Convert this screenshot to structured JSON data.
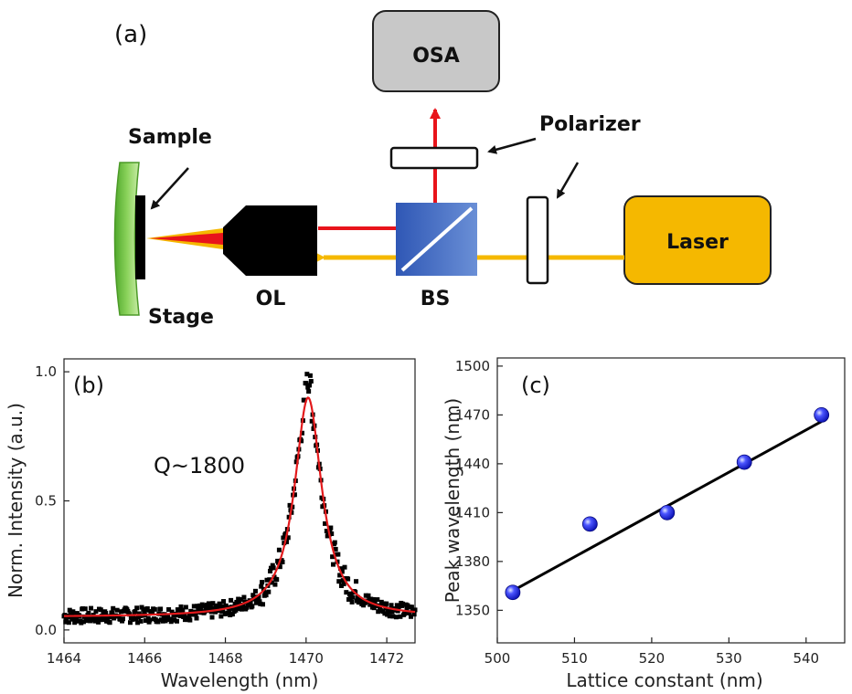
{
  "panel_a": {
    "label": "(a)",
    "boxes": {
      "osa": "OSA",
      "laser": "Laser"
    },
    "labels": {
      "sample": "Sample",
      "stage": "Stage",
      "objective": "OL",
      "beamsplitter": "BS",
      "polarizer": "Polarizer"
    },
    "colors": {
      "laser_beam": "#f5b800",
      "signal_beam": "#e8141b",
      "stage": "#6fbf3f",
      "bs": "#3a63b7",
      "laser_box": "#f5b800",
      "osa_box": "#c8c8c8"
    }
  },
  "chart_data": [
    {
      "panel": "(b)",
      "type": "scatter",
      "annotation": "Q~1800",
      "xlabel": "Wavelength (nm)",
      "ylabel": "Norm. Intensity (a.u.)",
      "xlim": [
        1464,
        1472.7
      ],
      "ylim": [
        -0.05,
        1.05
      ],
      "xticks": [
        1464,
        1466,
        1468,
        1470,
        1472
      ],
      "yticks": [
        0.0,
        0.5,
        1.0
      ],
      "ytick_labels": [
        "0.0",
        "0.5",
        "1.0"
      ],
      "series": [
        {
          "kind": "measured",
          "marker": "square",
          "color": "#000000",
          "peak_x": 1470.05,
          "peak_y": 0.92,
          "baseline": 0.05,
          "noise": 0.03,
          "n_points": 430
        },
        {
          "kind": "fit",
          "color": "#e31a1c",
          "center": 1470.05,
          "fwhm": 0.82,
          "amplitude": 0.85,
          "baseline": 0.05
        }
      ]
    },
    {
      "panel": "(c)",
      "type": "scatter",
      "xlabel": "Lattice constant (nm)",
      "ylabel": "Peak wavelength (nm)",
      "xlim": [
        500,
        545
      ],
      "ylim": [
        1330,
        1505
      ],
      "xticks": [
        500,
        510,
        520,
        530,
        540
      ],
      "yticks": [
        1350,
        1380,
        1410,
        1440,
        1470,
        1500
      ],
      "series": [
        {
          "kind": "measured",
          "marker": "sphere",
          "color": "#1a1aff",
          "x": [
            502,
            512,
            522,
            532,
            542
          ],
          "y": [
            1361,
            1403,
            1410,
            1441,
            1470
          ]
        },
        {
          "kind": "fit",
          "color": "#000000",
          "x": [
            502,
            542
          ],
          "y": [
            1362,
            1466
          ]
        }
      ]
    }
  ]
}
